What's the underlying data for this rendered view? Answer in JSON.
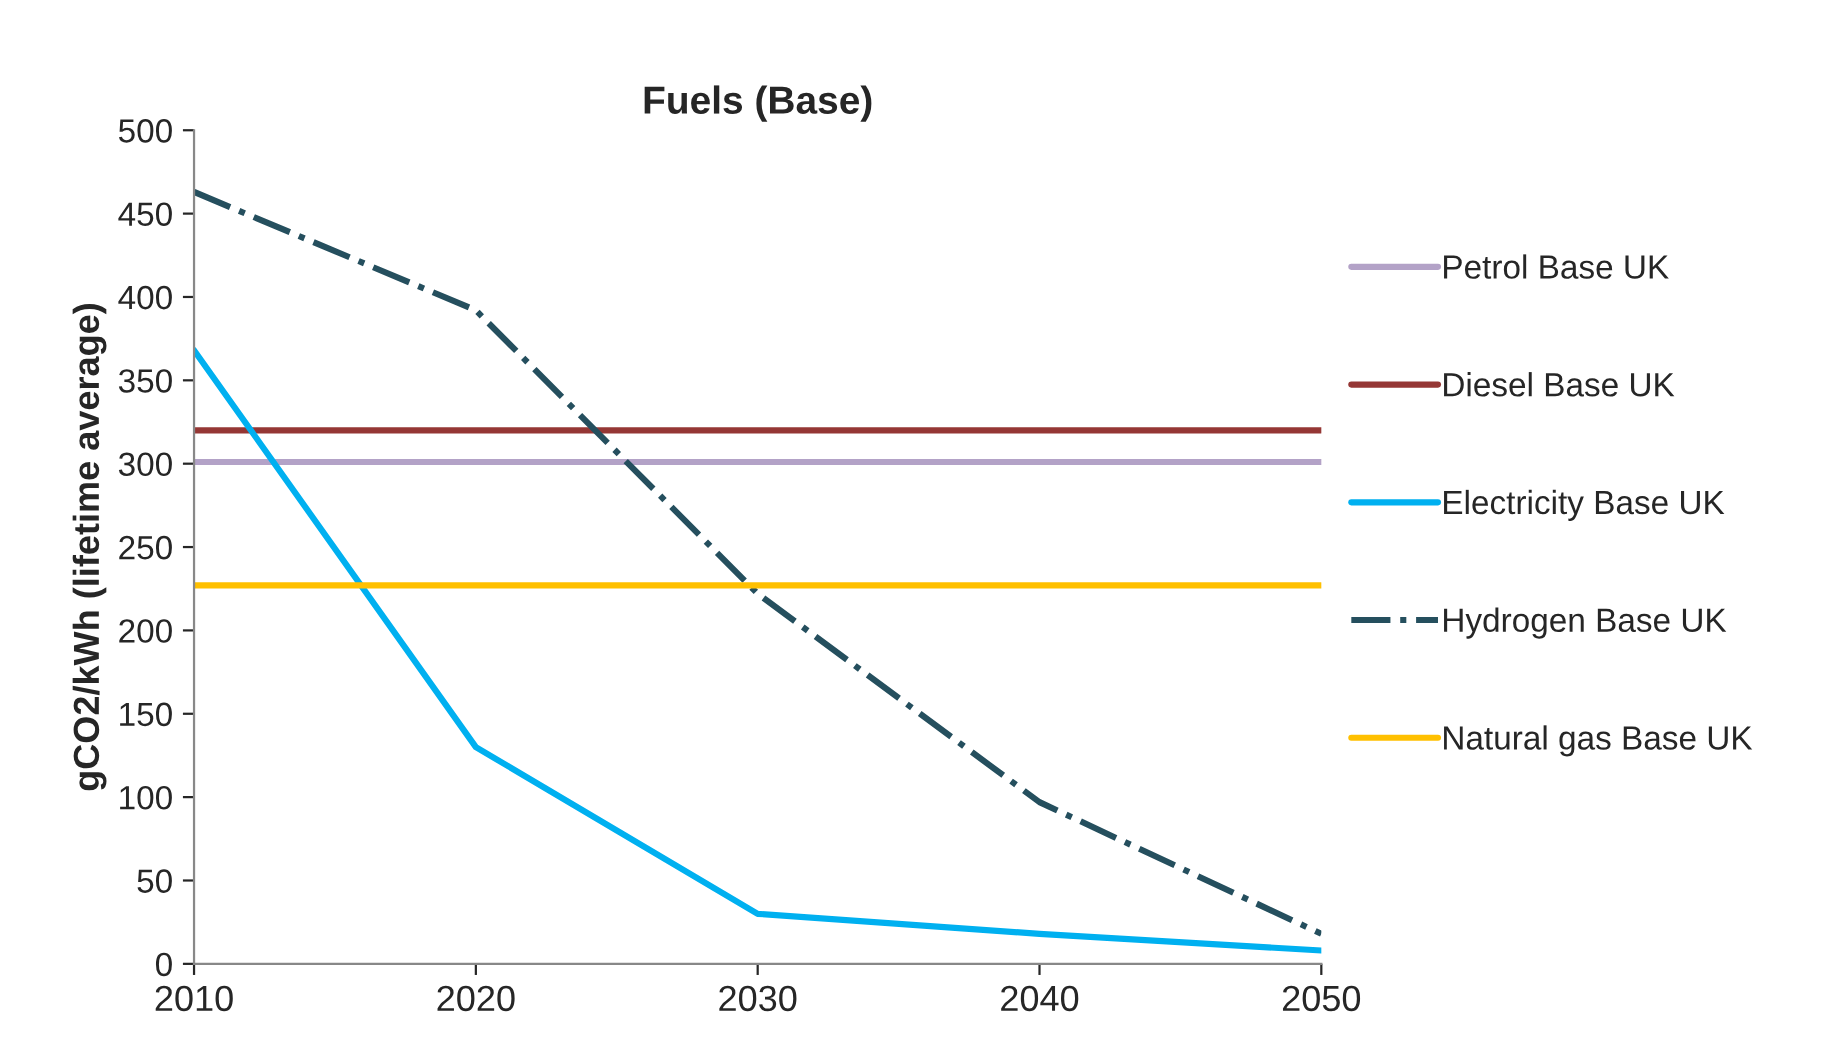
{
  "chart_data": {
    "type": "line",
    "title": "Fuels (Base)",
    "ylabel": "gCO2/kWh (lifetime average)",
    "x": [
      2010,
      2020,
      2030,
      2040,
      2050
    ],
    "series": [
      {
        "name": "Petrol Base UK",
        "color": "#b3a2c7",
        "values": [
          301,
          301,
          301,
          301,
          301
        ]
      },
      {
        "name": "Diesel Base UK",
        "color": "#953735",
        "values": [
          320,
          320,
          320,
          320,
          320
        ]
      },
      {
        "name": "Electricity Base UK",
        "color": "#00b0f0",
        "values": [
          368,
          130,
          30,
          18,
          8
        ]
      },
      {
        "name": "Hydrogen Base UK",
        "color": "#254f5e",
        "values": [
          463,
          392,
          222,
          97,
          18
        ],
        "line_style": "dashdot"
      },
      {
        "name": "Natural gas Base UK",
        "color": "#ffc000",
        "values": [
          227,
          227,
          227,
          227,
          227
        ]
      }
    ],
    "xlim": [
      2010,
      2050
    ],
    "xticks": [
      2010,
      2020,
      2030,
      2040,
      2050
    ],
    "ylim": [
      0,
      500
    ],
    "yticks": [
      0,
      50,
      100,
      150,
      200,
      250,
      300,
      350,
      400,
      450,
      500
    ],
    "grid": false,
    "legend": "right",
    "marker": "none"
  }
}
